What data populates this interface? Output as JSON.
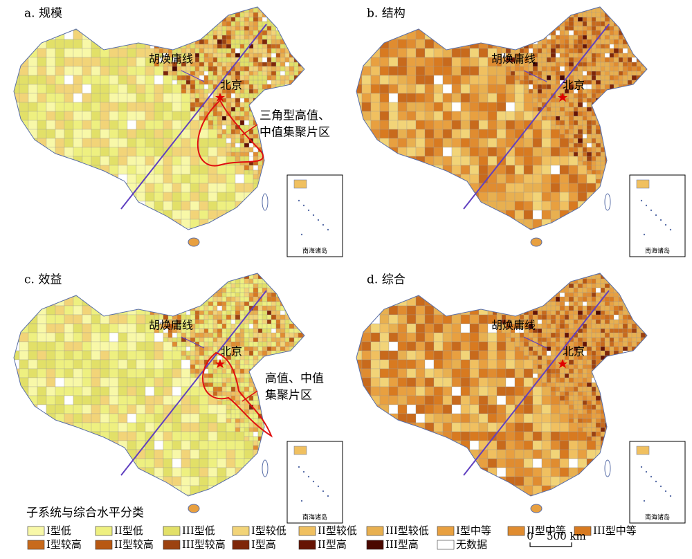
{
  "panels": [
    {
      "title": "a. 规模",
      "line_label": "胡焕庸线",
      "city": "北京",
      "annotation": [
        "三角型高值、",
        "中值集聚片区"
      ],
      "inset_label": "南海诸岛"
    },
    {
      "title": "b. 结构",
      "line_label": "胡焕庸线",
      "city": "北京",
      "inset_label": "南海诸岛"
    },
    {
      "title": "c. 效益",
      "line_label": "胡焕庸线",
      "city": "北京",
      "annotation": [
        "高值、中值",
        "集聚片区"
      ],
      "inset_label": "南海诸岛"
    },
    {
      "title": "d. 综合",
      "line_label": "胡焕庸线",
      "city": "北京",
      "inset_label": "南海诸岛"
    }
  ],
  "legend": {
    "title": "子系统与综合水平分类",
    "items": [
      {
        "label": "I型低",
        "color": "#f8f8a8"
      },
      {
        "label": "II型低",
        "color": "#eef080"
      },
      {
        "label": "III型低",
        "color": "#e2e068"
      },
      {
        "label": "I型较低",
        "color": "#f2d478"
      },
      {
        "label": "II型较低",
        "color": "#f0c060"
      },
      {
        "label": "III型较低",
        "color": "#e8b050"
      },
      {
        "label": "I型中等",
        "color": "#e8a040"
      },
      {
        "label": "II型中等",
        "color": "#e08c30"
      },
      {
        "label": "III型中等",
        "color": "#d87a20"
      },
      {
        "label": "I型较高",
        "color": "#c86a1c"
      },
      {
        "label": "II型较高",
        "color": "#b85812"
      },
      {
        "label": "III型较高",
        "color": "#9c4210"
      },
      {
        "label": "I型高",
        "color": "#7e2608"
      },
      {
        "label": "II型高",
        "color": "#661404"
      },
      {
        "label": "III型高",
        "color": "#4a0800"
      },
      {
        "label": "无数据",
        "color": "#ffffff"
      }
    ]
  },
  "scale": {
    "zero": "0",
    "distance": "500 km"
  }
}
